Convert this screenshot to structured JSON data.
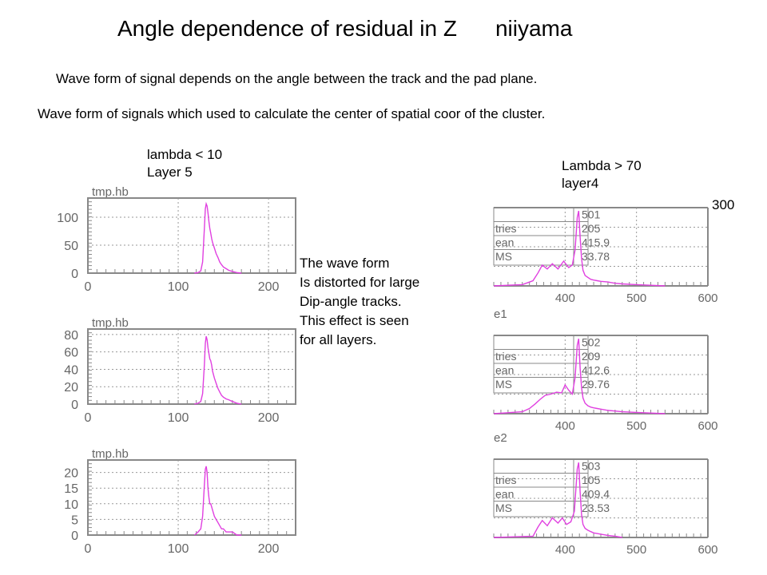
{
  "slide": {
    "title": "Angle dependence of residual in Z",
    "author": "niiyama",
    "subtitle1": "Wave form of signal depends on the angle between the track and the pad plane.",
    "subtitle2": "Wave form of signals which used to calculate the center of spatial coor of the cluster.",
    "left_label": {
      "line1": "lambda < 10",
      "line2": "Layer 5"
    },
    "right_label": {
      "line1": "Lambda > 70",
      "line2": "layer4"
    },
    "stray_number": "300",
    "note": {
      "line1": "The wave form",
      "line2": "Is distorted for large",
      "line3": "Dip-angle tracks.",
      "line4": "This effect is seen",
      "line5": "for all layers."
    }
  },
  "colors": {
    "curve": "#e040e0",
    "frame": "#888888",
    "grid": "#999999",
    "tick_text": "#666666"
  },
  "chart_data": [
    {
      "type": "line",
      "title": "tmp.hb",
      "xlim": [
        0,
        230
      ],
      "ylim": [
        0,
        140
      ],
      "xticks": [
        0,
        100,
        200
      ],
      "yticks": [
        0,
        50,
        100
      ],
      "x": [
        118,
        122,
        125,
        127,
        129,
        130,
        131,
        132,
        133,
        134,
        135,
        136,
        137,
        138,
        140,
        142,
        144,
        146,
        148,
        150,
        153,
        156,
        160,
        165,
        170
      ],
      "y": [
        0,
        1,
        4,
        20,
        80,
        115,
        124,
        120,
        108,
        92,
        80,
        72,
        62,
        55,
        45,
        35,
        28,
        20,
        15,
        11,
        8,
        5,
        3,
        1,
        0
      ]
    },
    {
      "type": "line",
      "title": "tmp.hb",
      "xlim": [
        0,
        230
      ],
      "ylim": [
        0,
        90
      ],
      "xticks": [
        0,
        100,
        200
      ],
      "yticks": [
        0,
        20,
        40,
        60,
        80
      ],
      "x": [
        118,
        122,
        125,
        127,
        129,
        130,
        131,
        132,
        133,
        134,
        135,
        136,
        137,
        138,
        140,
        142,
        144,
        146,
        148,
        150,
        153,
        156,
        160,
        165,
        170
      ],
      "y": [
        0,
        1,
        3,
        12,
        45,
        70,
        78,
        74,
        65,
        58,
        52,
        50,
        45,
        38,
        30,
        24,
        18,
        14,
        10,
        8,
        6,
        5,
        3,
        1,
        0
      ]
    },
    {
      "type": "line",
      "title": "tmp.hb",
      "xlim": [
        0,
        230
      ],
      "ylim": [
        0,
        25
      ],
      "xticks": [
        0,
        100,
        200
      ],
      "yticks": [
        0,
        5,
        10,
        15,
        20
      ],
      "x": [
        118,
        122,
        125,
        127,
        129,
        130,
        131,
        132,
        133,
        134,
        135,
        136,
        137,
        138,
        140,
        142,
        144,
        146,
        148,
        150,
        153,
        156,
        160,
        165,
        170
      ],
      "y": [
        0,
        1,
        2,
        6,
        16,
        21,
        22,
        20,
        15,
        12,
        10,
        10,
        9,
        8,
        6,
        5,
        4,
        3,
        2,
        2,
        1,
        1,
        1,
        0,
        0
      ]
    },
    {
      "type": "line",
      "id": "501",
      "stats": {
        "entries_label": "tries",
        "entries": "205",
        "mean_label": "ean",
        "mean": "415.9",
        "rms_label": "MS",
        "rms": "33.78"
      },
      "xlim": [
        300,
        600
      ],
      "ylim": [
        0,
        12
      ],
      "xticks": [
        400,
        500,
        600
      ],
      "yticks": [],
      "x": [
        300,
        340,
        355,
        362,
        368,
        375,
        382,
        390,
        398,
        405,
        410,
        414,
        417,
        419,
        421,
        423,
        425,
        428,
        432,
        436,
        440,
        445,
        450,
        460,
        470,
        480,
        500,
        520,
        540
      ],
      "y": [
        0,
        0.2,
        0.8,
        2,
        3.2,
        2.6,
        3.4,
        2.6,
        3.8,
        2.8,
        3.2,
        5.5,
        10.5,
        11.5,
        7.5,
        4.2,
        2.4,
        1.6,
        1.3,
        1.0,
        0.9,
        0.8,
        0.7,
        0.6,
        0.4,
        0.3,
        0.2,
        0.1,
        0
      ]
    },
    {
      "type": "line",
      "id": "502",
      "stats": {
        "entries_label": "tries",
        "entries": "209",
        "mean_label": "ean",
        "mean": "412.6",
        "rms_label": "MS",
        "rms": "29.76"
      },
      "xlim": [
        300,
        600
      ],
      "ylim": [
        0,
        12
      ],
      "xticks": [
        400,
        500,
        600
      ],
      "yticks": [],
      "x": [
        300,
        340,
        350,
        358,
        365,
        372,
        380,
        388,
        395,
        400,
        405,
        410,
        414,
        417,
        419,
        421,
        423,
        425,
        428,
        432,
        436,
        440,
        445,
        450,
        460,
        470,
        480,
        500,
        520,
        540
      ],
      "y": [
        0,
        0.3,
        0.8,
        1.5,
        2.2,
        2.8,
        3.0,
        3.3,
        3.2,
        4.4,
        3.6,
        3.0,
        5.5,
        10.5,
        11.5,
        7.0,
        4.0,
        2.4,
        1.6,
        1.2,
        1.0,
        0.9,
        0.8,
        0.7,
        0.5,
        0.4,
        0.3,
        0.2,
        0.1,
        0
      ]
    },
    {
      "type": "line",
      "id": "503",
      "stats": {
        "entries_label": "tries",
        "entries": "105",
        "mean_label": "ean",
        "mean": "409.4",
        "rms_label": "MS",
        "rms": "23.53"
      },
      "xlim": [
        300,
        600
      ],
      "ylim": [
        0,
        12
      ],
      "xticks": [
        400,
        500,
        600
      ],
      "yticks": [],
      "x": [
        300,
        355,
        362,
        368,
        375,
        382,
        390,
        396,
        402,
        408,
        413,
        417,
        419,
        421,
        423,
        425,
        428,
        432,
        436,
        440,
        445,
        450,
        455,
        460,
        470,
        480
      ],
      "y": [
        0,
        0.2,
        1.6,
        2.6,
        1.8,
        3.0,
        2.2,
        3.0,
        2.0,
        2.4,
        4.0,
        10.5,
        11.5,
        7.0,
        3.5,
        2.0,
        1.4,
        1.1,
        0.9,
        0.7,
        0.6,
        0.5,
        0.4,
        0.3,
        0.2,
        0
      ]
    }
  ],
  "right_panel_partial_labels": [
    "e1",
    "e2"
  ]
}
